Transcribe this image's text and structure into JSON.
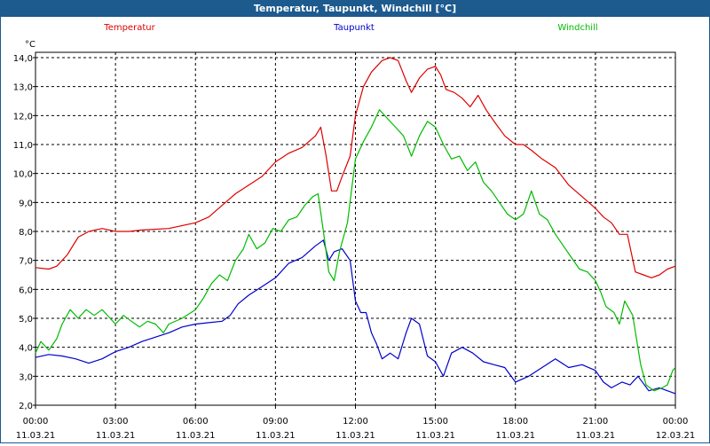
{
  "window": {
    "title": "Temperatur, Taupunkt, Windchill [°C]"
  },
  "chart_data": {
    "type": "line",
    "title": "Temperatur, Taupunkt, Windchill [°C]",
    "ylabel": "°C",
    "xlabel": "",
    "ylim": [
      2.0,
      14.0
    ],
    "yticks": [
      "2,0",
      "3,0",
      "4,0",
      "5,0",
      "6,0",
      "7,0",
      "8,0",
      "9,0",
      "10,0",
      "11,0",
      "12,0",
      "13,0",
      "14,0"
    ],
    "xlim_hours": [
      0,
      24
    ],
    "xticks": [
      {
        "time": "00:00",
        "date": "11.03.21"
      },
      {
        "time": "03:00",
        "date": "11.03.21"
      },
      {
        "time": "06:00",
        "date": "11.03.21"
      },
      {
        "time": "09:00",
        "date": "11.03.21"
      },
      {
        "time": "12:00",
        "date": "11.03.21"
      },
      {
        "time": "15:00",
        "date": "11.03.21"
      },
      {
        "time": "18:00",
        "date": "11.03.21"
      },
      {
        "time": "21:00",
        "date": "11.03.21"
      },
      {
        "time": "00:00",
        "date": "12.03.21"
      }
    ],
    "grid": true,
    "legend_position": "top",
    "series": [
      {
        "name": "Temperatur",
        "color": "#dd0000",
        "points": [
          [
            0,
            6.75
          ],
          [
            0.5,
            6.7
          ],
          [
            0.8,
            6.8
          ],
          [
            1.2,
            7.2
          ],
          [
            1.6,
            7.8
          ],
          [
            2.0,
            8.0
          ],
          [
            2.5,
            8.1
          ],
          [
            3.0,
            8.0
          ],
          [
            3.5,
            8.0
          ],
          [
            4.0,
            8.05
          ],
          [
            5.0,
            8.1
          ],
          [
            6.0,
            8.3
          ],
          [
            6.5,
            8.5
          ],
          [
            7.0,
            8.9
          ],
          [
            7.5,
            9.3
          ],
          [
            8.0,
            9.6
          ],
          [
            8.5,
            9.9
          ],
          [
            9.0,
            10.4
          ],
          [
            9.5,
            10.7
          ],
          [
            10.0,
            10.9
          ],
          [
            10.5,
            11.3
          ],
          [
            10.7,
            11.6
          ],
          [
            10.9,
            10.6
          ],
          [
            11.1,
            9.4
          ],
          [
            11.3,
            9.4
          ],
          [
            11.5,
            9.9
          ],
          [
            11.8,
            10.6
          ],
          [
            12.0,
            12.0
          ],
          [
            12.3,
            13.0
          ],
          [
            12.6,
            13.5
          ],
          [
            13.0,
            13.9
          ],
          [
            13.3,
            14.0
          ],
          [
            13.6,
            13.9
          ],
          [
            13.9,
            13.2
          ],
          [
            14.1,
            12.8
          ],
          [
            14.4,
            13.3
          ],
          [
            14.7,
            13.6
          ],
          [
            15.0,
            13.7
          ],
          [
            15.2,
            13.4
          ],
          [
            15.4,
            12.9
          ],
          [
            15.7,
            12.8
          ],
          [
            16.0,
            12.6
          ],
          [
            16.3,
            12.3
          ],
          [
            16.6,
            12.7
          ],
          [
            16.9,
            12.2
          ],
          [
            17.2,
            11.8
          ],
          [
            17.6,
            11.3
          ],
          [
            18.0,
            11.0
          ],
          [
            18.3,
            11.0
          ],
          [
            18.6,
            10.8
          ],
          [
            19.0,
            10.5
          ],
          [
            19.5,
            10.2
          ],
          [
            20.0,
            9.6
          ],
          [
            20.5,
            9.2
          ],
          [
            21.0,
            8.8
          ],
          [
            21.3,
            8.5
          ],
          [
            21.6,
            8.3
          ],
          [
            21.9,
            7.9
          ],
          [
            22.2,
            7.9
          ],
          [
            22.5,
            6.6
          ],
          [
            22.8,
            6.5
          ],
          [
            23.1,
            6.4
          ],
          [
            23.4,
            6.5
          ],
          [
            23.7,
            6.7
          ],
          [
            24.0,
            6.8
          ]
        ]
      },
      {
        "name": "Taupunkt",
        "color": "#0000cc",
        "points": [
          [
            0,
            3.65
          ],
          [
            0.5,
            3.75
          ],
          [
            1.0,
            3.7
          ],
          [
            1.5,
            3.6
          ],
          [
            2.0,
            3.45
          ],
          [
            2.5,
            3.6
          ],
          [
            3.0,
            3.85
          ],
          [
            3.5,
            4.0
          ],
          [
            4.0,
            4.2
          ],
          [
            4.5,
            4.35
          ],
          [
            5.0,
            4.5
          ],
          [
            5.5,
            4.7
          ],
          [
            6.0,
            4.8
          ],
          [
            6.5,
            4.85
          ],
          [
            7.0,
            4.9
          ],
          [
            7.3,
            5.1
          ],
          [
            7.6,
            5.5
          ],
          [
            8.0,
            5.8
          ],
          [
            8.5,
            6.1
          ],
          [
            9.0,
            6.4
          ],
          [
            9.5,
            6.9
          ],
          [
            10.0,
            7.1
          ],
          [
            10.5,
            7.5
          ],
          [
            10.8,
            7.7
          ],
          [
            11.0,
            7.0
          ],
          [
            11.2,
            7.3
          ],
          [
            11.5,
            7.4
          ],
          [
            11.8,
            7.0
          ],
          [
            12.0,
            5.6
          ],
          [
            12.2,
            5.2
          ],
          [
            12.4,
            5.2
          ],
          [
            12.6,
            4.5
          ],
          [
            12.8,
            4.1
          ],
          [
            13.0,
            3.6
          ],
          [
            13.3,
            3.8
          ],
          [
            13.6,
            3.6
          ],
          [
            13.9,
            4.5
          ],
          [
            14.1,
            5.0
          ],
          [
            14.4,
            4.8
          ],
          [
            14.7,
            3.7
          ],
          [
            15.0,
            3.5
          ],
          [
            15.3,
            3.0
          ],
          [
            15.6,
            3.8
          ],
          [
            16.0,
            4.0
          ],
          [
            16.4,
            3.8
          ],
          [
            16.8,
            3.5
          ],
          [
            17.2,
            3.4
          ],
          [
            17.6,
            3.3
          ],
          [
            18.0,
            2.8
          ],
          [
            18.5,
            3.0
          ],
          [
            19.0,
            3.3
          ],
          [
            19.5,
            3.6
          ],
          [
            20.0,
            3.3
          ],
          [
            20.5,
            3.4
          ],
          [
            21.0,
            3.2
          ],
          [
            21.3,
            2.8
          ],
          [
            21.6,
            2.6
          ],
          [
            22.0,
            2.8
          ],
          [
            22.3,
            2.7
          ],
          [
            22.6,
            3.0
          ],
          [
            23.0,
            2.5
          ],
          [
            23.4,
            2.6
          ],
          [
            23.7,
            2.5
          ],
          [
            24.0,
            2.4
          ]
        ]
      },
      {
        "name": "Windchill",
        "color": "#00bb00",
        "points": [
          [
            0,
            3.8
          ],
          [
            0.2,
            4.2
          ],
          [
            0.5,
            3.9
          ],
          [
            0.8,
            4.3
          ],
          [
            1.0,
            4.8
          ],
          [
            1.3,
            5.3
          ],
          [
            1.6,
            5.0
          ],
          [
            1.9,
            5.3
          ],
          [
            2.2,
            5.1
          ],
          [
            2.5,
            5.3
          ],
          [
            2.8,
            5.0
          ],
          [
            3.0,
            4.8
          ],
          [
            3.3,
            5.1
          ],
          [
            3.6,
            4.9
          ],
          [
            3.9,
            4.7
          ],
          [
            4.2,
            4.9
          ],
          [
            4.5,
            4.8
          ],
          [
            4.8,
            4.5
          ],
          [
            5.0,
            4.8
          ],
          [
            5.5,
            5.0
          ],
          [
            6.0,
            5.3
          ],
          [
            6.3,
            5.7
          ],
          [
            6.6,
            6.2
          ],
          [
            6.9,
            6.5
          ],
          [
            7.2,
            6.3
          ],
          [
            7.5,
            7.0
          ],
          [
            7.8,
            7.4
          ],
          [
            8.0,
            7.9
          ],
          [
            8.3,
            7.4
          ],
          [
            8.6,
            7.6
          ],
          [
            8.9,
            8.1
          ],
          [
            9.2,
            8.0
          ],
          [
            9.5,
            8.4
          ],
          [
            9.8,
            8.5
          ],
          [
            10.1,
            8.9
          ],
          [
            10.4,
            9.2
          ],
          [
            10.6,
            9.3
          ],
          [
            10.8,
            8.0
          ],
          [
            11.0,
            6.6
          ],
          [
            11.2,
            6.3
          ],
          [
            11.4,
            7.3
          ],
          [
            11.7,
            8.3
          ],
          [
            12.0,
            10.5
          ],
          [
            12.3,
            11.1
          ],
          [
            12.6,
            11.6
          ],
          [
            12.9,
            12.2
          ],
          [
            13.2,
            11.9
          ],
          [
            13.5,
            11.6
          ],
          [
            13.8,
            11.3
          ],
          [
            14.1,
            10.6
          ],
          [
            14.4,
            11.3
          ],
          [
            14.7,
            11.8
          ],
          [
            15.0,
            11.6
          ],
          [
            15.3,
            11.0
          ],
          [
            15.6,
            10.5
          ],
          [
            15.9,
            10.6
          ],
          [
            16.2,
            10.1
          ],
          [
            16.5,
            10.4
          ],
          [
            16.8,
            9.7
          ],
          [
            17.1,
            9.4
          ],
          [
            17.4,
            9.0
          ],
          [
            17.7,
            8.6
          ],
          [
            18.0,
            8.4
          ],
          [
            18.3,
            8.6
          ],
          [
            18.6,
            9.4
          ],
          [
            18.9,
            8.6
          ],
          [
            19.2,
            8.4
          ],
          [
            19.5,
            7.9
          ],
          [
            19.8,
            7.5
          ],
          [
            20.1,
            7.1
          ],
          [
            20.4,
            6.7
          ],
          [
            20.7,
            6.6
          ],
          [
            21.0,
            6.3
          ],
          [
            21.2,
            5.9
          ],
          [
            21.4,
            5.4
          ],
          [
            21.7,
            5.2
          ],
          [
            21.9,
            4.8
          ],
          [
            22.1,
            5.6
          ],
          [
            22.4,
            5.1
          ],
          [
            22.7,
            3.4
          ],
          [
            22.9,
            2.7
          ],
          [
            23.2,
            2.5
          ],
          [
            23.5,
            2.6
          ],
          [
            23.7,
            2.7
          ],
          [
            23.9,
            3.2
          ],
          [
            24.0,
            3.3
          ]
        ]
      }
    ]
  }
}
